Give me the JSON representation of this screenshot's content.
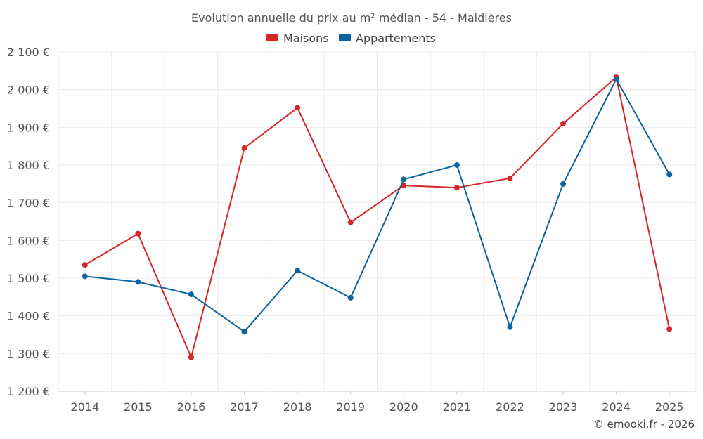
{
  "chart_data": {
    "type": "line",
    "title": "Evolution annuelle du prix au m² médian - 54 - Maidières",
    "x": [
      "2014",
      "2015",
      "2016",
      "2017",
      "2018",
      "2019",
      "2020",
      "2021",
      "2022",
      "2023",
      "2024",
      "2025"
    ],
    "yticks": [
      "1 200 €",
      "1 300 €",
      "1 400 €",
      "1 500 €",
      "1 600 €",
      "1 700 €",
      "1 800 €",
      "1 900 €",
      "2 000 €",
      "2 100 €"
    ],
    "ylim": [
      1200,
      2100
    ],
    "series": [
      {
        "name": "Maisons",
        "color": "#d62728",
        "values": [
          1535,
          1618,
          1290,
          1845,
          1952,
          1648,
          1746,
          1740,
          1765,
          1910,
          2033,
          1365
        ]
      },
      {
        "name": "Appartements",
        "color": "#0b64a0",
        "values": [
          1505,
          1490,
          1457,
          1358,
          1520,
          1448,
          1762,
          1800,
          1370,
          1750,
          2028,
          1775
        ]
      }
    ],
    "legend_position": "top-center",
    "grid": true,
    "credit": "© emooki.fr - 2026"
  }
}
